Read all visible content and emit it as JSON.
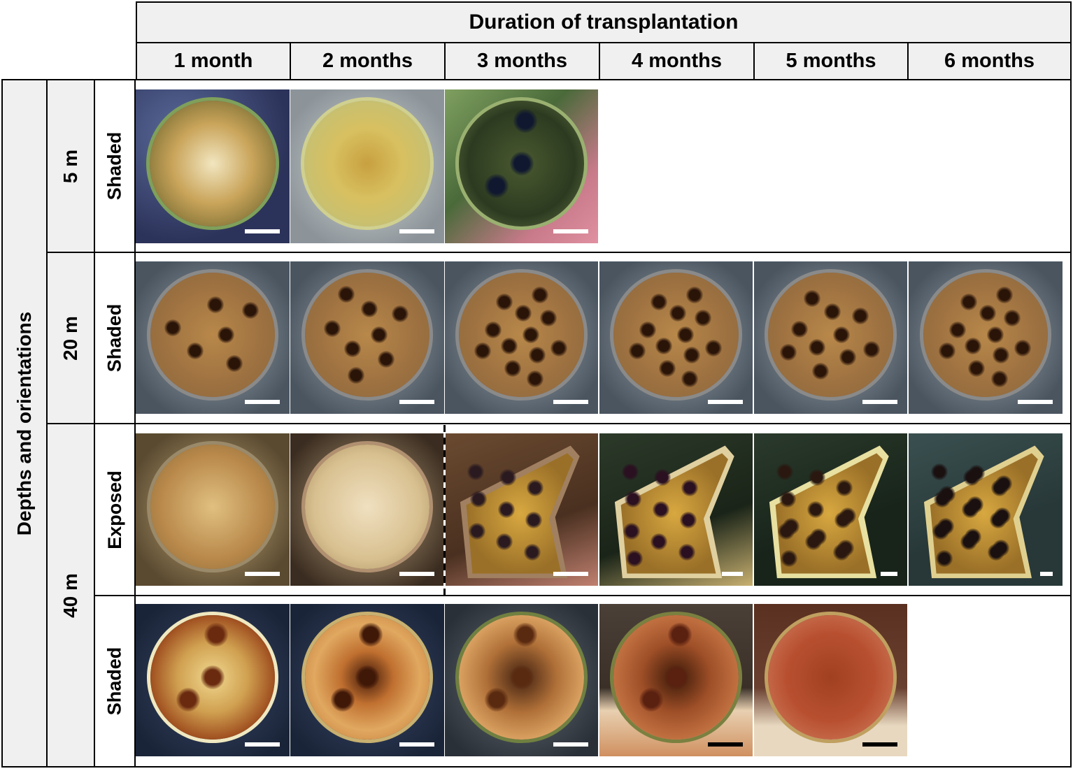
{
  "header": {
    "title": "Duration of transplantation",
    "columns": [
      "1 month",
      "2 months",
      "3 months",
      "4 months",
      "5 months",
      "6 months"
    ]
  },
  "side_title": "Depths and orientations",
  "depths": [
    {
      "label": "5 m",
      "orientations": [
        "Shaded"
      ]
    },
    {
      "label": "20 m",
      "orientations": [
        "Shaded"
      ]
    },
    {
      "label": "40 m",
      "orientations": [
        "Exposed",
        "Shaded"
      ]
    }
  ],
  "photos": [
    {
      "row": "5 m Shaded",
      "months": [
        1,
        2,
        3
      ]
    },
    {
      "row": "20 m Shaded",
      "months": [
        1,
        2,
        3,
        4,
        5,
        6
      ]
    },
    {
      "row": "40 m Exposed",
      "months": [
        1,
        2,
        3,
        4,
        5,
        6
      ]
    },
    {
      "row": "40 m Shaded",
      "months": [
        1,
        2,
        3,
        4,
        5
      ]
    }
  ],
  "colors": {
    "header_bg": "#f0f0f0",
    "grid_line": "#000000",
    "scale_bar_light": "#ffffff",
    "scale_bar_dark": "#000000"
  }
}
